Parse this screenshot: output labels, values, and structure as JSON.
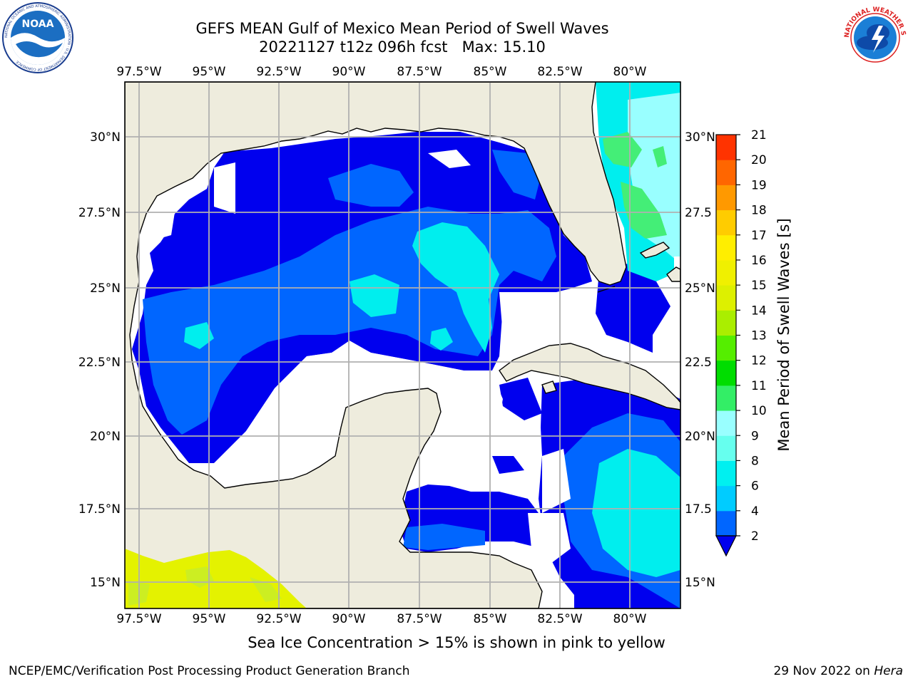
{
  "header": {
    "title_line1": "GEFS MEAN Gulf of Mexico Mean Period of Swell Waves",
    "title_line2": "20221127 t12z 096h fcst   Max: 15.10"
  },
  "logos": {
    "left": "NOAA",
    "left_ring_text": "NATIONAL OCEANIC AND ATMOSPHERIC ADMINISTRATION · U.S. DEPARTMENT OF COMMERCE",
    "right_ring_text": "NATIONAL WEATHER SERVICE"
  },
  "map": {
    "lon_labels": [
      "97.5°W",
      "95°W",
      "92.5°W",
      "90°W",
      "87.5°W",
      "85°W",
      "82.5°W",
      "80°W"
    ],
    "lat_labels": [
      "30°N",
      "27.5°N",
      "25°N",
      "22.5°N",
      "20°N",
      "17.5°N",
      "15°N"
    ],
    "right_lat_labels": [
      "30°N",
      "27.5",
      "25°N",
      "22.5",
      "20°N",
      "17.5",
      "15°N"
    ],
    "colors": {
      "land": "#eeecdd",
      "ocean_masked": "#ffffff",
      "coast": "#000000",
      "grid": "#b0b0b0",
      "ice": "#e8f400"
    }
  },
  "colorbar": {
    "label": "Mean Period of Swell Waves [s]",
    "ticks": [
      "2",
      "4",
      "6",
      "8",
      "9",
      "10",
      "11",
      "12",
      "13",
      "14",
      "15",
      "16",
      "17",
      "18",
      "19",
      "20",
      "21"
    ],
    "colors": [
      "#0066ff",
      "#00ccff",
      "#00f0f0",
      "#66ffee",
      "#99ffff",
      "#33ee66",
      "#00dd00",
      "#55ee00",
      "#aaee00",
      "#ddf000",
      "#f0f000",
      "#ffee00",
      "#ffcc00",
      "#ff9900",
      "#ff6600",
      "#ff3300",
      "#ff0000"
    ],
    "extend_color": "#0000ee"
  },
  "footer": {
    "note": "Sea Ice Concentration > 15% is shown in pink to yellow",
    "credit_left": "NCEP/EMC/Verification Post Processing Product Generation Branch",
    "credit_date": "29 Nov 2022 on",
    "credit_machine": "Hera"
  }
}
